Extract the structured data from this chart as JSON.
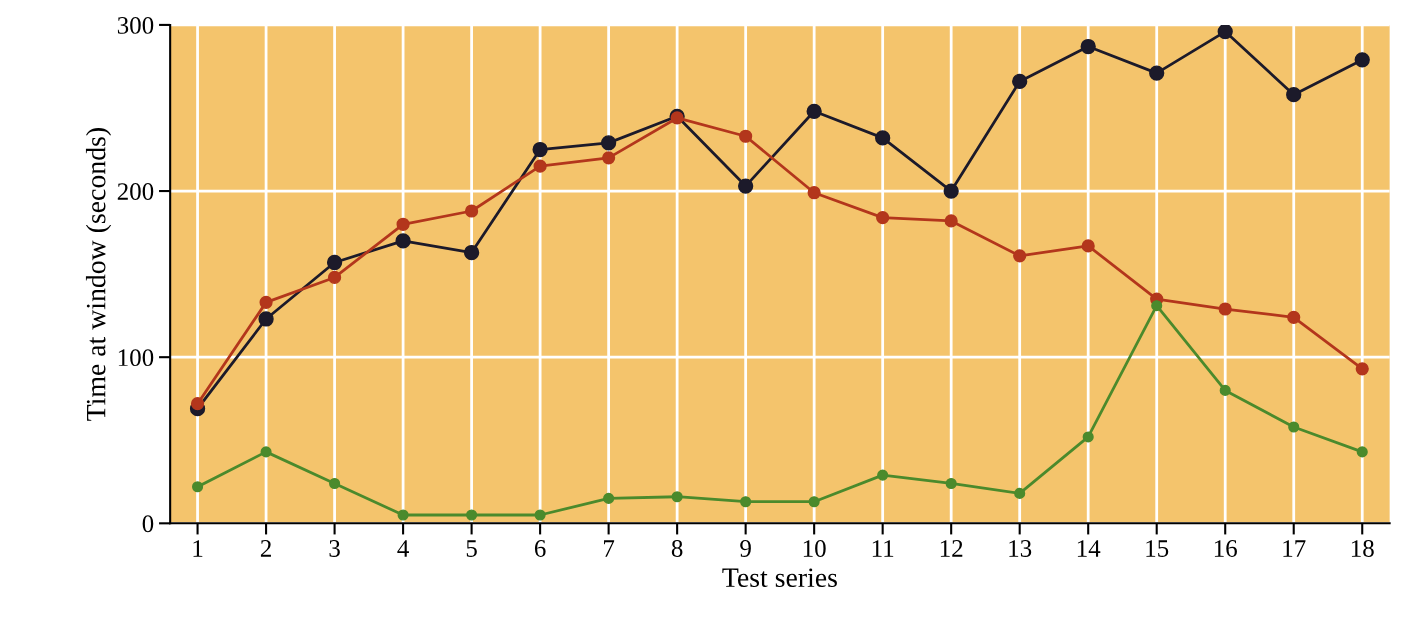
{
  "chart_data": {
    "type": "line",
    "xlabel": "Test series",
    "ylabel": "Time at window (seconds)",
    "categories": [
      "1",
      "2",
      "3",
      "4",
      "5",
      "6",
      "7",
      "8",
      "9",
      "10",
      "11",
      "12",
      "13",
      "14",
      "15",
      "16",
      "17",
      "18"
    ],
    "series": [
      {
        "color": "#1c1a2a",
        "values": [
          69,
          123,
          157,
          170,
          163,
          225,
          229,
          245,
          203,
          248,
          232,
          200,
          266,
          287,
          271,
          296,
          258,
          279
        ]
      },
      {
        "color": "#b3361c",
        "values": [
          72,
          133,
          148,
          180,
          188,
          215,
          220,
          244,
          233,
          199,
          184,
          182,
          161,
          167,
          135,
          129,
          124,
          93
        ]
      },
      {
        "color": "#4b8a2c",
        "values": [
          22,
          43,
          24,
          5,
          5,
          5,
          15,
          16,
          13,
          13,
          29,
          24,
          18,
          52,
          131,
          80,
          58,
          43
        ]
      }
    ],
    "ylim": [
      0,
      300
    ],
    "yticks": [
      0,
      100,
      200,
      300
    ],
    "grid": true,
    "marker": "circle",
    "line_style": "solid"
  }
}
